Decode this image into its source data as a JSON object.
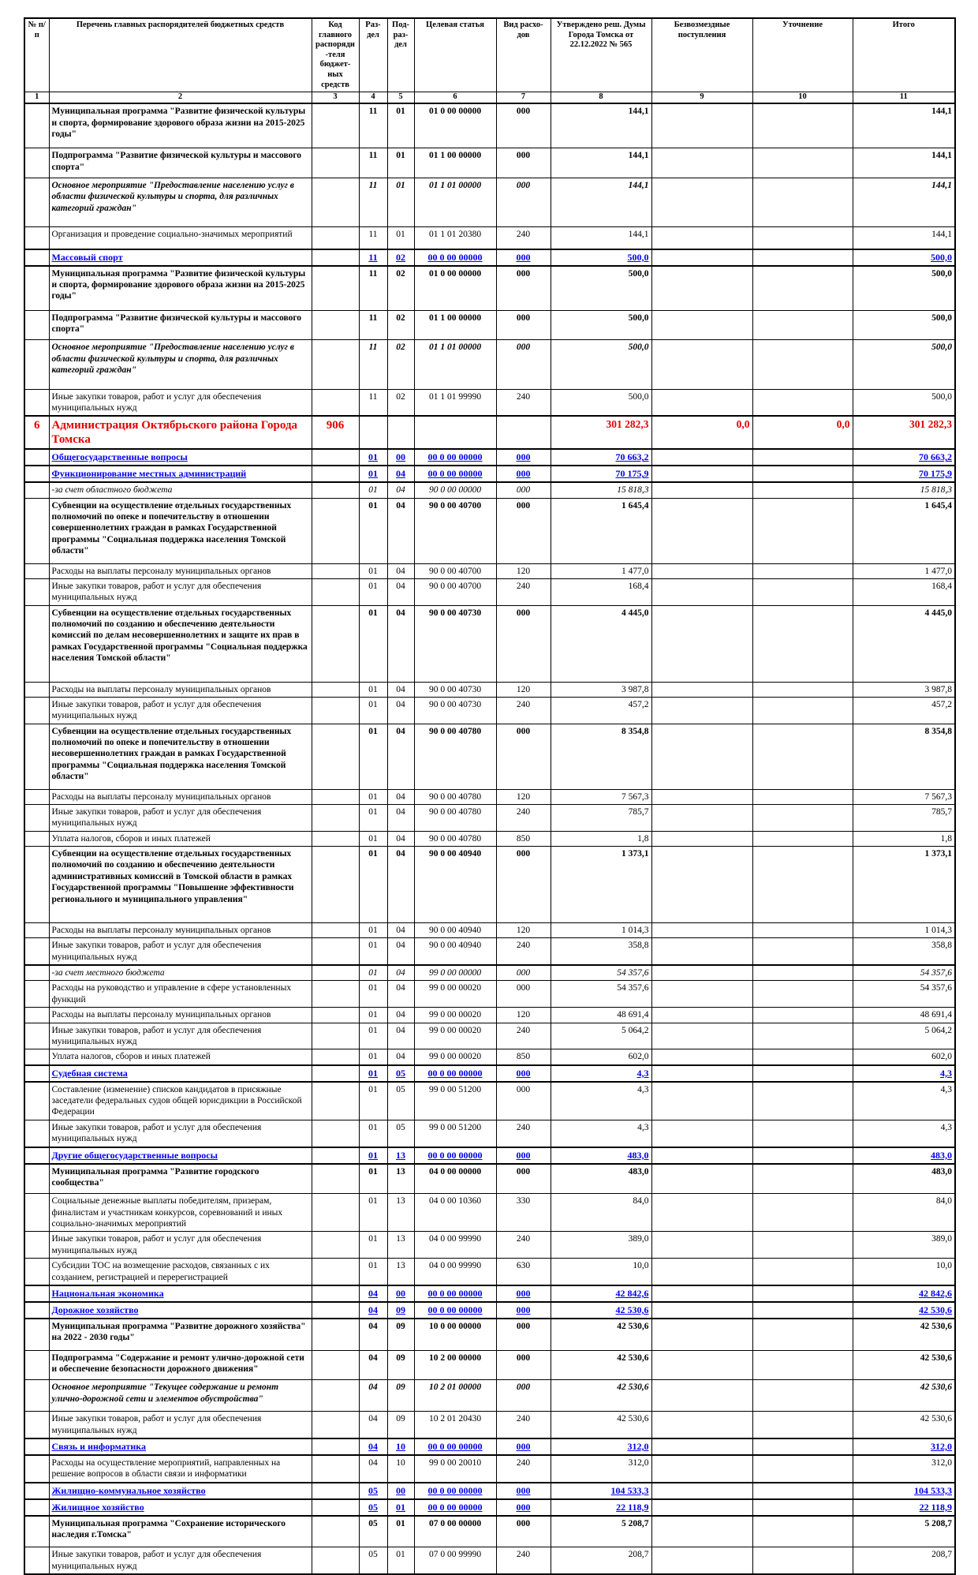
{
  "document": {
    "kind": "budget-allocation-table"
  },
  "colors": {
    "section_text": "#0000ee",
    "main_row_text": "#e30000",
    "grid": "#000000",
    "background": "#ffffff"
  },
  "table": {
    "columns": [
      {
        "key": "num",
        "label": "№ п/п"
      },
      {
        "key": "name",
        "label": "Перечень главных распорядителей бюджетных средств"
      },
      {
        "key": "code",
        "label": "Код главного распоряди-теля бюджет-ных средств"
      },
      {
        "key": "rz",
        "label": "Раз-дел"
      },
      {
        "key": "pr",
        "label": "Под-раз-дел"
      },
      {
        "key": "csr",
        "label": "Целевая статья"
      },
      {
        "key": "vr",
        "label": "Вид расхо-дов"
      },
      {
        "key": "approved",
        "label": "Утверждено реш. Думы Города Томска от 22.12.2022 № 565"
      },
      {
        "key": "grants",
        "label": "Безвозмездные поступления"
      },
      {
        "key": "adjust",
        "label": "Уточнение"
      },
      {
        "key": "total",
        "label": "Итого"
      }
    ],
    "column_numbers": [
      "1",
      "2",
      "3",
      "4",
      "5",
      "6",
      "7",
      "8",
      "9",
      "10",
      "11"
    ],
    "rows": [
      {
        "s": "b",
        "c": [
          "",
          "Муниципальная программа \"Развитие физической культуры и спорта, формирование здорового образа жизни на 2015-2025 годы\"",
          "",
          "11",
          "01",
          "01 0 00 00000",
          "000",
          "144,1",
          "",
          "",
          "144,1"
        ],
        "pad": 8
      },
      {
        "s": "b",
        "c": [
          "",
          "Подпрограмма \"Развитие физической культуры и массового спорта\"",
          "",
          "11",
          "01",
          "01 1 00 00000",
          "000",
          "144,1",
          "",
          "",
          "144,1"
        ],
        "pad": 4
      },
      {
        "s": "bi",
        "c": [
          "",
          "Основное мероприятие \"Предоставление населению услуг в области физической культуры и спорта, для различных категорий граждан\"",
          "",
          "11",
          "01",
          "01 1 01 00000",
          "000",
          "144,1",
          "",
          "",
          "144,1"
        ],
        "pad": 14
      },
      {
        "s": "r",
        "c": [
          "",
          "Организация и проведение социально-значимых мероприятий",
          "",
          "11",
          "01",
          "01 1 01 20380",
          "240",
          "144,1",
          "",
          "",
          "144,1"
        ],
        "pad": 8
      },
      {
        "s": "blue",
        "c": [
          "",
          "Массовый спорт",
          "",
          "11",
          "02",
          "00 0 00 00000",
          "000",
          "500,0",
          "",
          "",
          "500,0"
        ]
      },
      {
        "s": "b",
        "c": [
          "",
          "Муниципальная программа \"Развитие физической культуры и спорта, формирование здорового образа жизни на 2015-2025 годы\"",
          "",
          "11",
          "02",
          "01 0 00 00000",
          "000",
          "500,0",
          "",
          "",
          "500,0"
        ],
        "pad": 8
      },
      {
        "s": "b",
        "c": [
          "",
          "Подпрограмма \"Развитие физической культуры и массового спорта\"",
          "",
          "11",
          "02",
          "01 1 00 00000",
          "000",
          "500,0",
          "",
          "",
          "500,0"
        ],
        "pad": 4
      },
      {
        "s": "bi",
        "c": [
          "",
          "Основное мероприятие \"Предоставление населению услуг в области физической культуры и спорта, для различных категорий граждан\"",
          "",
          "11",
          "02",
          "01 1 01 00000",
          "000",
          "500,0",
          "",
          "",
          "500,0"
        ],
        "pad": 14
      },
      {
        "s": "r",
        "c": [
          "",
          "Иные закупки товаров, работ и услуг для обеспечения муниципальных нужд",
          "",
          "11",
          "02",
          "01 1 01 99990",
          "240",
          "500,0",
          "",
          "",
          "500,0"
        ]
      },
      {
        "s": "red",
        "c": [
          "6",
          "Администрация Октябрьского района Города Томска",
          "906",
          "",
          "",
          "",
          "",
          "301 282,3",
          "0,0",
          "0,0",
          "301 282,3"
        ]
      },
      {
        "s": "blue",
        "c": [
          "",
          "Общегосударственные вопросы",
          "",
          "01",
          "00",
          "00 0 00 00000",
          "000",
          "70 663,2",
          "",
          "",
          "70 663,2"
        ]
      },
      {
        "s": "blue",
        "c": [
          "",
          "Функционирование местных администраций",
          "",
          "01",
          "04",
          "00 0 00 00000",
          "000",
          "70 175,9",
          "",
          "",
          "70 175,9"
        ]
      },
      {
        "s": "i",
        "c": [
          "",
          "-за счет областного бюджета",
          "",
          "01",
          "04",
          "90 0 00 00000",
          "000",
          "15 818,3",
          "",
          "",
          "15 818,3"
        ]
      },
      {
        "s": "b",
        "c": [
          "",
          "Субвенции на осуществление отдельных государственных полномочий по опеке и попечительству в отношении совершеннолетних граждан в рамках Государственной программы \"Социальная поддержка населения Томской области\"",
          "",
          "01",
          "04",
          "90 0 00 40700",
          "000",
          "1 645,4",
          "",
          "",
          "1 645,4"
        ],
        "pad": 6
      },
      {
        "s": "r",
        "c": [
          "",
          "Расходы на выплаты персоналу муниципальных органов",
          "",
          "01",
          "04",
          "90 0 00 40700",
          "120",
          "1 477,0",
          "",
          "",
          "1 477,0"
        ]
      },
      {
        "s": "r",
        "c": [
          "",
          "Иные закупки товаров, работ и услуг для обеспечения муниципальных нужд",
          "",
          "01",
          "04",
          "90 0 00 40700",
          "240",
          "168,4",
          "",
          "",
          "168,4"
        ]
      },
      {
        "s": "b",
        "c": [
          "",
          "Субвенции на осуществление отдельных государственных полномочий по созданию и обеспечению деятельности комиссий по делам несовершеннолетних и защите их прав в рамках Государственной программы \"Социальная поддержка населения Томской области\"",
          "",
          "01",
          "04",
          "90 0 00 40730",
          "000",
          "4 445,0",
          "",
          "",
          "4 445,0"
        ],
        "pad": 20
      },
      {
        "s": "r",
        "c": [
          "",
          "Расходы на выплаты персоналу муниципальных органов",
          "",
          "01",
          "04",
          "90 0 00 40730",
          "120",
          "3 987,8",
          "",
          "",
          "3 987,8"
        ]
      },
      {
        "s": "r",
        "c": [
          "",
          "Иные закупки товаров, работ и услуг для обеспечения муниципальных нужд",
          "",
          "01",
          "04",
          "90 0 00 40730",
          "240",
          "457,2",
          "",
          "",
          "457,2"
        ]
      },
      {
        "s": "b",
        "c": [
          "",
          "Субвенции на осуществление отдельных государственных полномочий по опеке и попечительству в отношении несовершеннолетних граждан в рамках Государственной программы \"Социальная поддержка населения Томской области\"",
          "",
          "01",
          "04",
          "90 0 00 40780",
          "000",
          "8 354,8",
          "",
          "",
          "8 354,8"
        ],
        "pad": 6
      },
      {
        "s": "r",
        "c": [
          "",
          "Расходы на выплаты персоналу муниципальных органов",
          "",
          "01",
          "04",
          "90 0 00 40780",
          "120",
          "7 567,3",
          "",
          "",
          "7 567,3"
        ]
      },
      {
        "s": "r",
        "c": [
          "",
          "Иные закупки товаров, работ и услуг для обеспечения муниципальных нужд",
          "",
          "01",
          "04",
          "90 0 00 40780",
          "240",
          "785,7",
          "",
          "",
          "785,7"
        ]
      },
      {
        "s": "r",
        "c": [
          "",
          "Уплата налогов, сборов и иных платежей",
          "",
          "01",
          "04",
          "90 0 00 40780",
          "850",
          "1,8",
          "",
          "",
          "1,8"
        ]
      },
      {
        "s": "b",
        "c": [
          "",
          "Субвенции на осуществление отдельных государственных полномочий по созданию и обеспечению деятельности административных комиссий в Томской области в рамках Государственной программы \"Повышение эффективности регионального и муниципального управления\"",
          "",
          "01",
          "04",
          "90 0 00 40940",
          "000",
          "1 373,1",
          "",
          "",
          "1 373,1"
        ],
        "pad": 20
      },
      {
        "s": "r",
        "c": [
          "",
          "Расходы на выплаты персоналу муниципальных органов",
          "",
          "01",
          "04",
          "90 0 00 40940",
          "120",
          "1 014,3",
          "",
          "",
          "1 014,3"
        ]
      },
      {
        "s": "r",
        "c": [
          "",
          "Иные закупки товаров, работ и услуг для обеспечения муниципальных нужд",
          "",
          "01",
          "04",
          "90 0 00 40940",
          "240",
          "358,8",
          "",
          "",
          "358,8"
        ]
      },
      {
        "s": "i",
        "t": true,
        "c": [
          "",
          "-за счет местного бюджета",
          "",
          "01",
          "04",
          "99 0 00 00000",
          "000",
          "54 357,6",
          "",
          "",
          "54 357,6"
        ]
      },
      {
        "s": "r",
        "c": [
          "",
          "Расходы на руководство и управление в сфере установленных функций",
          "",
          "01",
          "04",
          "99 0 00 00020",
          "000",
          "54 357,6",
          "",
          "",
          "54 357,6"
        ]
      },
      {
        "s": "r",
        "c": [
          "",
          "Расходы на выплаты персоналу муниципальных органов",
          "",
          "01",
          "04",
          "99 0 00 00020",
          "120",
          "48 691,4",
          "",
          "",
          "48 691,4"
        ]
      },
      {
        "s": "r",
        "c": [
          "",
          "Иные закупки товаров, работ и услуг для обеспечения муниципальных нужд",
          "",
          "01",
          "04",
          "99 0 00 00020",
          "240",
          "5 064,2",
          "",
          "",
          "5 064,2"
        ]
      },
      {
        "s": "r",
        "c": [
          "",
          "Уплата налогов, сборов и иных платежей",
          "",
          "01",
          "04",
          "99 0 00 00020",
          "850",
          "602,0",
          "",
          "",
          "602,0"
        ]
      },
      {
        "s": "blue",
        "c": [
          "",
          "Судебная система",
          "",
          "01",
          "05",
          "00 0 00 00000",
          "000",
          "4,3",
          "",
          "",
          "4,3"
        ]
      },
      {
        "s": "r",
        "c": [
          "",
          "Составление (изменение) списков кандидатов в присяжные заседатели федеральных судов общей юрисдикции в Российской Федерации",
          "",
          "01",
          "05",
          "99 0 00 51200",
          "000",
          "4,3",
          "",
          "",
          "4,3"
        ]
      },
      {
        "s": "r",
        "c": [
          "",
          "Иные закупки товаров, работ и услуг для обеспечения муниципальных нужд",
          "",
          "01",
          "05",
          "99 0 00 51200",
          "240",
          "4,3",
          "",
          "",
          "4,3"
        ]
      },
      {
        "s": "blue",
        "c": [
          "",
          "Другие общегосударственные вопросы",
          "",
          "01",
          "13",
          "00 0 00 00000",
          "000",
          "483,0",
          "",
          "",
          "483,0"
        ]
      },
      {
        "s": "b",
        "c": [
          "",
          "Муниципальная программа \"Развитие городского сообщества\"",
          "",
          "01",
          "13",
          "04 0 00 00000",
          "000",
          "483,0",
          "",
          "",
          "483,0"
        ],
        "pad": 4
      },
      {
        "s": "r",
        "c": [
          "",
          "Социальные денежные выплаты победителям, призерам, финалистам и участникам конкурсов, соревнований и иных социально-значимых мероприятий",
          "",
          "01",
          "13",
          "04 0 00 10360",
          "330",
          "84,0",
          "",
          "",
          "84,0"
        ]
      },
      {
        "s": "r",
        "c": [
          "",
          "Иные закупки товаров, работ и услуг для обеспечения муниципальных нужд",
          "",
          "01",
          "13",
          "04 0 00 99990",
          "240",
          "389,0",
          "",
          "",
          "389,0"
        ]
      },
      {
        "s": "r",
        "c": [
          "",
          "Субсидии ТОС на возмещение расходов, связанных с их созданием, регистрацией и перерегистрацией",
          "",
          "01",
          "13",
          "04 0 00 99990",
          "630",
          "10,0",
          "",
          "",
          "10,0"
        ]
      },
      {
        "s": "blue",
        "c": [
          "",
          "Национальная экономика",
          "",
          "04",
          "00",
          "00 0 00 00000",
          "000",
          "42 842,6",
          "",
          "",
          "42 842,6"
        ]
      },
      {
        "s": "blue",
        "c": [
          "",
          "Дорожное хозяйство",
          "",
          "04",
          "09",
          "00 0 00 00000",
          "000",
          "42 530,6",
          "",
          "",
          "42 530,6"
        ]
      },
      {
        "s": "b",
        "c": [
          "",
          "Муниципальная программа \"Развитие дорожного хозяйства\" на 2022 - 2030 годы\"",
          "",
          "04",
          "09",
          "10 0 00 00000",
          "000",
          "42 530,6",
          "",
          "",
          "42 530,6"
        ],
        "pad": 6
      },
      {
        "s": "b",
        "c": [
          "",
          "Подпрограмма \"Содержание и ремонт улично-дорожной сети и обеспечение безопасности дорожного движения\"",
          "",
          "04",
          "09",
          "10 2 00 00000",
          "000",
          "42 530,6",
          "",
          "",
          "42 530,6"
        ],
        "pad": 4
      },
      {
        "s": "bi",
        "c": [
          "",
          "Основное мероприятие \"Текущее содержание и ремонт улично-дорожной сети и элементов обустройства\"",
          "",
          "04",
          "09",
          "10 2 01 00000",
          "000",
          "42 530,6",
          "",
          "",
          "42 530,6"
        ],
        "pad": 6
      },
      {
        "s": "r",
        "c": [
          "",
          "Иные закупки товаров, работ и услуг для обеспечения муниципальных нужд",
          "",
          "04",
          "09",
          "10 2 01 20430",
          "240",
          "42 530,6",
          "",
          "",
          "42 530,6"
        ]
      },
      {
        "s": "blue",
        "c": [
          "",
          "Связь и информатика",
          "",
          "04",
          "10",
          "00 0 00 00000",
          "000",
          "312,0",
          "",
          "",
          "312,0"
        ]
      },
      {
        "s": "r",
        "c": [
          "",
          "Расходы на осуществление мероприятий, направленных на решение вопросов в области связи и информатики",
          "",
          "04",
          "10",
          "99 0 00 20010",
          "240",
          "312,0",
          "",
          "",
          "312,0"
        ]
      },
      {
        "s": "blue",
        "c": [
          "",
          "Жилищно-коммунальное хозяйство",
          "",
          "05",
          "00",
          "00 0 00 00000",
          "000",
          "104 533,3",
          "",
          "",
          "104 533,3"
        ]
      },
      {
        "s": "blue",
        "c": [
          "",
          "Жилищное хозяйство",
          "",
          "05",
          "01",
          "00 0 00 00000",
          "000",
          "22 118,9",
          "",
          "",
          "22 118,9"
        ]
      },
      {
        "s": "b",
        "c": [
          "",
          "Муниципальная программа \"Сохранение исторического наследия г.Томска\"",
          "",
          "05",
          "01",
          "07 0 00 00000",
          "000",
          "5 208,7",
          "",
          "",
          "5 208,7"
        ],
        "pad": 6
      },
      {
        "s": "r",
        "c": [
          "",
          "Иные закупки товаров, работ и услуг для обеспечения муниципальных нужд",
          "",
          "05",
          "01",
          "07 0 00 99990",
          "240",
          "208,7",
          "",
          "",
          "208,7"
        ]
      }
    ]
  }
}
